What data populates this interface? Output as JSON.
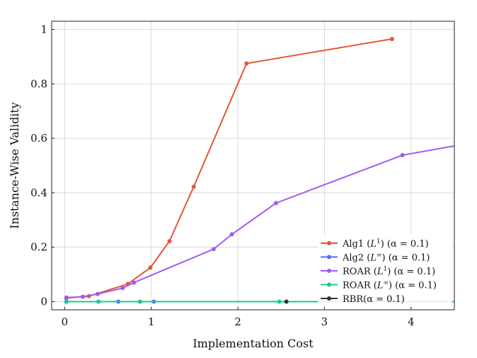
{
  "chart_data": {
    "type": "line",
    "xlabel": "Implementation Cost",
    "ylabel": "Instance-Wise Validity",
    "xlim": [
      -0.15,
      4.5
    ],
    "ylim": [
      -0.03,
      1.03
    ],
    "x_ticks": [
      0,
      1,
      2,
      3,
      4
    ],
    "y_ticks": [
      0,
      0.2,
      0.4,
      0.6,
      0.8,
      1
    ],
    "x_tick_labels": [
      "0",
      "1",
      "2",
      "3",
      "4"
    ],
    "y_tick_labels": [
      "0",
      "0.2",
      "0.4",
      "0.6",
      "0.8",
      "1"
    ],
    "grid": true,
    "legend_position": "bottom-right",
    "series": [
      {
        "name": "Alg1 (L¹) (α = 0.1)",
        "color": "#e8553a",
        "x": [
          0.02,
          0.28,
          0.73,
          0.99,
          1.21,
          1.49,
          2.1,
          3.78
        ],
        "y": [
          0.013,
          0.02,
          0.065,
          0.125,
          0.222,
          0.422,
          0.875,
          0.965
        ]
      },
      {
        "name": "Alg2 (L∞) (α = 0.1)",
        "color": "#5b6cf2",
        "x": [
          0.02,
          0.62,
          1.03
        ],
        "y": [
          0.0,
          0.0,
          0.0
        ]
      },
      {
        "name": "ROAR (L¹) (α = 0.1)",
        "color": "#a15af2",
        "x": [
          0.02,
          0.21,
          0.38,
          0.67,
          0.8,
          1.72,
          1.93,
          2.44,
          3.9,
          4.5
        ],
        "y": [
          0.015,
          0.018,
          0.028,
          0.05,
          0.07,
          0.193,
          0.247,
          0.362,
          0.538,
          0.572
        ]
      },
      {
        "name": "ROAR (L∞) (α = 0.1)",
        "color": "#1bc98e",
        "x": [
          0.02,
          0.39,
          0.87,
          2.48,
          4.5
        ],
        "y": [
          0.0,
          0.0,
          0.0,
          0.0,
          0.0
        ]
      },
      {
        "name": "RBR(α = 0.1)",
        "color": "#333333",
        "x": [
          2.56
        ],
        "y": [
          0.0
        ]
      }
    ]
  },
  "legend": {
    "items": [
      {
        "base": "Alg1 (",
        "sup_var": "L",
        "sup": "1",
        "tail": ") (α = 0.1)",
        "color": "#e8553a"
      },
      {
        "base": "Alg2 (",
        "sup_var": "L",
        "sup": "∞",
        "tail": ") (α = 0.1)",
        "color": "#5b6cf2"
      },
      {
        "base": "ROAR (",
        "sup_var": "L",
        "sup": "1",
        "tail": ") (α = 0.1)",
        "color": "#a15af2"
      },
      {
        "base": "ROAR (",
        "sup_var": "L",
        "sup": "∞",
        "tail": ") (α = 0.1)",
        "color": "#1bc98e"
      },
      {
        "base": "RBR(α = 0.1)",
        "sup_var": "",
        "sup": "",
        "tail": "",
        "color": "#333333"
      }
    ]
  }
}
